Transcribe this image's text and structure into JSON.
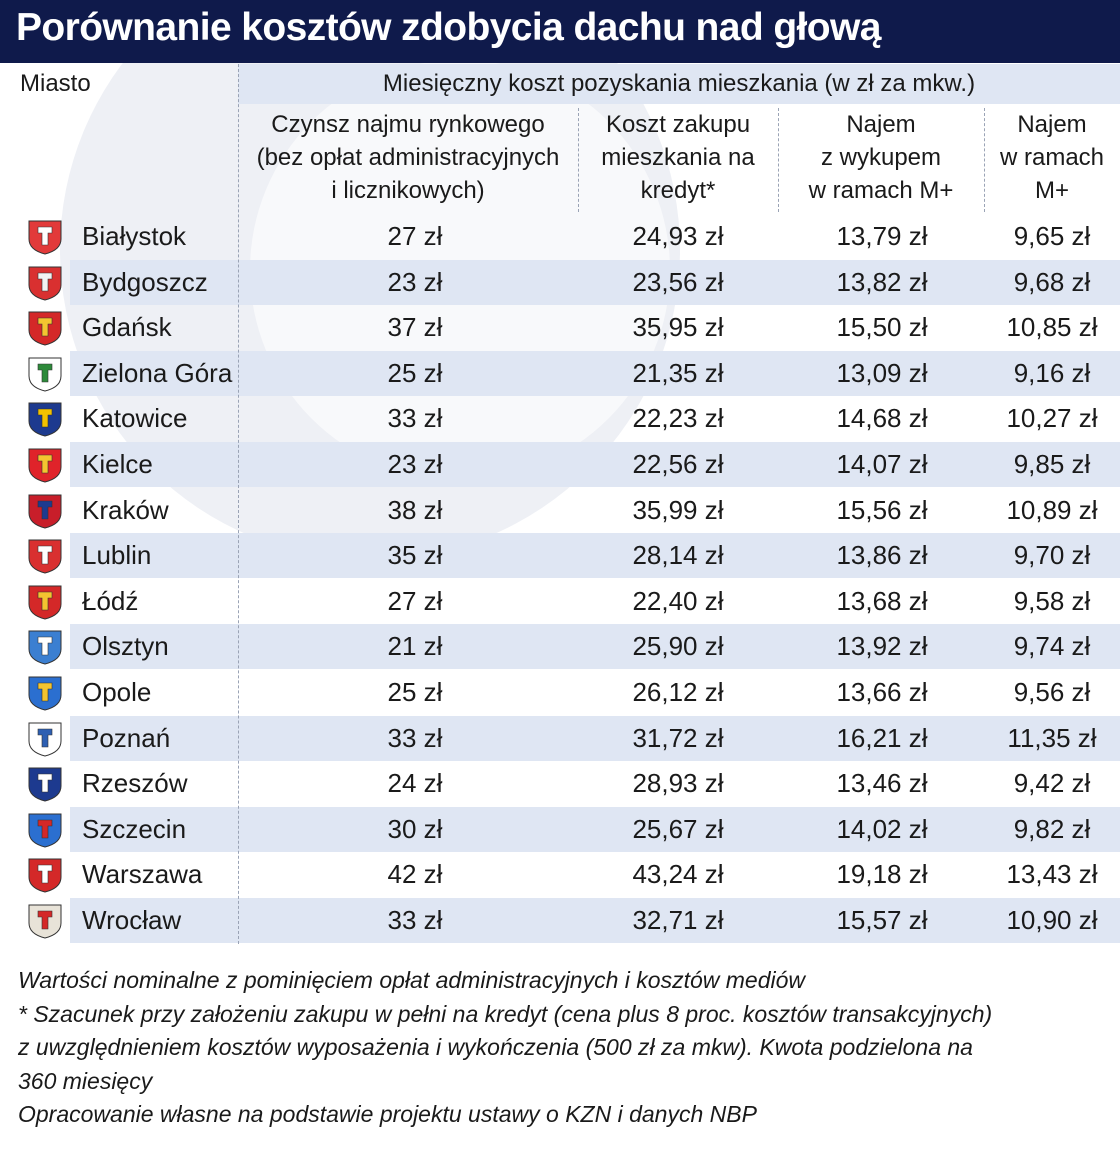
{
  "title": "Porównanie kosztów zdobycia dachu nad głową",
  "colors": {
    "header_bg": "#0f1a4b",
    "row_shade": "#dfe6f3",
    "text": "#1a1a1a"
  },
  "chart_data": {
    "type": "table",
    "title": "Porównanie kosztów zdobycia dachu nad głową",
    "row_header": "Miasto",
    "group_header": "Miesięczny koszt pozyskania mieszkania (w zł za mkw.)",
    "columns": [
      "Czynsz najmu rynkowego\n(bez opłat administracyjnych\ni licznikowych)",
      "Koszt zakupu\nmieszkania na\nkredyt*",
      "Najem\nz wykupem\nw ramach M+",
      "Najem\nw ramach\nM+"
    ],
    "rows": [
      {
        "city": "Białystok",
        "crest": "bialystok-crest-icon",
        "values": [
          "27 zł",
          "24,93 zł",
          "13,79 zł",
          "9,65 zł"
        ]
      },
      {
        "city": "Bydgoszcz",
        "crest": "bydgoszcz-crest-icon",
        "values": [
          "23 zł",
          "23,56 zł",
          "13,82 zł",
          "9,68 zł"
        ]
      },
      {
        "city": "Gdańsk",
        "crest": "gdansk-crest-icon",
        "values": [
          "37 zł",
          "35,95 zł",
          "15,50 zł",
          "10,85 zł"
        ]
      },
      {
        "city": "Zielona Góra",
        "crest": "zielona-gora-crest-icon",
        "values": [
          "25 zł",
          "21,35 zł",
          "13,09 zł",
          "9,16 zł"
        ]
      },
      {
        "city": "Katowice",
        "crest": "katowice-crest-icon",
        "values": [
          "33 zł",
          "22,23 zł",
          "14,68 zł",
          "10,27 zł"
        ]
      },
      {
        "city": "Kielce",
        "crest": "kielce-crest-icon",
        "values": [
          "23 zł",
          "22,56 zł",
          "14,07 zł",
          "9,85 zł"
        ]
      },
      {
        "city": "Kraków",
        "crest": "krakow-crest-icon",
        "values": [
          "38 zł",
          "35,99 zł",
          "15,56 zł",
          "10,89 zł"
        ]
      },
      {
        "city": "Lublin",
        "crest": "lublin-crest-icon",
        "values": [
          "35 zł",
          "28,14 zł",
          "13,86 zł",
          "9,70 zł"
        ]
      },
      {
        "city": "Łódź",
        "crest": "lodz-crest-icon",
        "values": [
          "27 zł",
          "22,40 zł",
          "13,68 zł",
          "9,58 zł"
        ]
      },
      {
        "city": "Olsztyn",
        "crest": "olsztyn-crest-icon",
        "values": [
          "21 zł",
          "25,90 zł",
          "13,92 zł",
          "9,74 zł"
        ]
      },
      {
        "city": "Opole",
        "crest": "opole-crest-icon",
        "values": [
          "25 zł",
          "26,12 zł",
          "13,66 zł",
          "9,56 zł"
        ]
      },
      {
        "city": "Poznań",
        "crest": "poznan-crest-icon",
        "values": [
          "33 zł",
          "31,72 zł",
          "16,21 zł",
          "11,35 zł"
        ]
      },
      {
        "city": "Rzeszów",
        "crest": "rzeszow-crest-icon",
        "values": [
          "24 zł",
          "28,93 zł",
          "13,46 zł",
          "9,42 zł"
        ]
      },
      {
        "city": "Szczecin",
        "crest": "szczecin-crest-icon",
        "values": [
          "30 zł",
          "25,67 zł",
          "14,02 zł",
          "9,82 zł"
        ]
      },
      {
        "city": "Warszawa",
        "crest": "warszawa-crest-icon",
        "values": [
          "42 zł",
          "43,24 zł",
          "19,18 zł",
          "13,43 zł"
        ]
      },
      {
        "city": "Wrocław",
        "crest": "wroclaw-crest-icon",
        "values": [
          "33 zł",
          "32,71 zł",
          "15,57 zł",
          "10,90 zł"
        ]
      }
    ]
  },
  "crest_colors": [
    {
      "field": "#e23a3a",
      "fig": "#ffffff"
    },
    {
      "field": "#d93030",
      "fig": "#f2f2f2"
    },
    {
      "field": "#d42828",
      "fig": "#f4c430"
    },
    {
      "field": "#ffffff",
      "fig": "#2d8a3a"
    },
    {
      "field": "#1d3a8f",
      "fig": "#f2c200"
    },
    {
      "field": "#e0232a",
      "fig": "#f4c430"
    },
    {
      "field": "#c81e2a",
      "fig": "#1d3a8f"
    },
    {
      "field": "#d93030",
      "fig": "#ffffff"
    },
    {
      "field": "#d42828",
      "fig": "#f4c430"
    },
    {
      "field": "#3b7fd1",
      "fig": "#ffffff"
    },
    {
      "field": "#2b6fd0",
      "fig": "#f4c430"
    },
    {
      "field": "#ffffff",
      "fig": "#2d5fb2"
    },
    {
      "field": "#1d3a8f",
      "fig": "#ffffff"
    },
    {
      "field": "#2b6fd0",
      "fig": "#d42828"
    },
    {
      "field": "#d42828",
      "fig": "#ffffff"
    },
    {
      "field": "#e8e3d8",
      "fig": "#d42828"
    }
  ],
  "notes": [
    "Wartości nominalne z pominięciem opłat administracyjnych i kosztów mediów",
    "* Szacunek przy założeniu zakupu w pełni na kredyt (cena plus 8 proc. kosztów transakcyjnych)",
    "z uwzględnieniem kosztów wyposażenia i wykończenia (500 zł za mkw). Kwota podzielona na",
    "360 miesięcy",
    "Opracowanie własne na podstawie projektu ustawy o KZN i danych NBP"
  ]
}
